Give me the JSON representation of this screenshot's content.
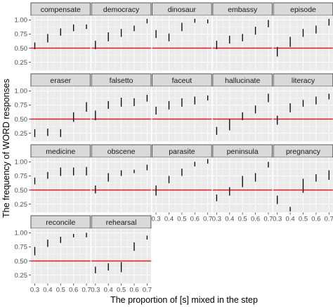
{
  "chart_data": {
    "type": "faceted-errorbar",
    "xlabel": "The proportion of [s] mixed in the step",
    "ylabel": "The frequency of WORD responses",
    "x_ticks": [
      0.3,
      0.4,
      0.5,
      0.6,
      0.7
    ],
    "y_ticks": [
      0.25,
      0.5,
      0.75,
      1.0
    ],
    "y_tick_labels": [
      "0.25",
      "0.50",
      "0.75",
      "1.00"
    ],
    "xlim": [
      0.27,
      0.73
    ],
    "ylim": [
      0.1,
      1.08
    ],
    "reference_line": 0.5,
    "grid": true,
    "colors": {
      "panel_bg": "#ebebeb",
      "grid_major": "#ffffff",
      "strip_bg": "#d9d9d9",
      "strip_border": "#333333",
      "reference_line": "#e31a1c",
      "errorbar": "#000000"
    },
    "panels": [
      {
        "title": "compensate",
        "x": [
          0.3,
          0.4,
          0.5,
          0.6,
          0.7
        ],
        "low": [
          0.48,
          0.6,
          0.72,
          0.8,
          0.84
        ],
        "high": [
          0.6,
          0.75,
          0.85,
          0.92,
          0.92
        ]
      },
      {
        "title": "democracy",
        "x": [
          0.3,
          0.4,
          0.5,
          0.6,
          0.7
        ],
        "low": [
          0.48,
          0.62,
          0.7,
          0.8,
          0.94
        ],
        "high": [
          0.63,
          0.78,
          0.84,
          0.9,
          1.02
        ]
      },
      {
        "title": "dinosaur",
        "x": [
          0.3,
          0.4,
          0.5,
          0.6,
          0.7
        ],
        "low": [
          0.68,
          0.62,
          0.8,
          0.95,
          0.94
        ],
        "high": [
          0.82,
          0.76,
          0.95,
          1.02,
          1.01
        ]
      },
      {
        "title": "embassy",
        "x": [
          0.3,
          0.4,
          0.5,
          0.6,
          0.7
        ],
        "low": [
          0.48,
          0.58,
          0.62,
          0.74,
          0.87
        ],
        "high": [
          0.63,
          0.72,
          0.75,
          0.88,
          1.0
        ]
      },
      {
        "title": "episode",
        "x": [
          0.3,
          0.4,
          0.5,
          0.6,
          0.7
        ],
        "low": [
          0.35,
          0.52,
          0.7,
          0.76,
          0.9
        ],
        "high": [
          0.52,
          0.7,
          0.84,
          0.9,
          1.02
        ]
      },
      {
        "title": "eraser",
        "x": [
          0.3,
          0.4,
          0.5,
          0.6,
          0.7
        ],
        "low": [
          0.18,
          0.2,
          0.18,
          0.45,
          0.63
        ],
        "high": [
          0.32,
          0.33,
          0.32,
          0.62,
          0.8
        ]
      },
      {
        "title": "falsetto",
        "x": [
          0.3,
          0.4,
          0.5,
          0.6,
          0.7
        ],
        "low": [
          0.48,
          0.68,
          0.72,
          0.73,
          0.81
        ],
        "high": [
          0.65,
          0.82,
          0.88,
          0.87,
          0.93
        ]
      },
      {
        "title": "faceut",
        "x": [
          0.3,
          0.4,
          0.5,
          0.6,
          0.7
        ],
        "low": [
          0.58,
          0.67,
          0.72,
          0.76,
          0.83
        ],
        "high": [
          0.72,
          0.82,
          0.87,
          0.9,
          0.92
        ]
      },
      {
        "title": "hallucinate",
        "x": [
          0.3,
          0.4,
          0.5,
          0.6,
          0.7
        ],
        "low": [
          0.22,
          0.3,
          0.48,
          0.6,
          0.8
        ],
        "high": [
          0.36,
          0.5,
          0.62,
          0.74,
          0.95
        ]
      },
      {
        "title": "literacy",
        "x": [
          0.3,
          0.4,
          0.5,
          0.6,
          0.7
        ],
        "low": [
          0.4,
          0.62,
          0.72,
          0.76,
          0.85
        ],
        "high": [
          0.56,
          0.78,
          0.84,
          0.9,
          0.95
        ]
      },
      {
        "title": "medicine",
        "x": [
          0.3,
          0.4,
          0.5,
          0.6,
          0.7
        ],
        "low": [
          0.6,
          0.7,
          0.75,
          0.76,
          0.76
        ],
        "high": [
          0.72,
          0.82,
          0.9,
          0.9,
          0.91
        ]
      },
      {
        "title": "obscene",
        "x": [
          0.3,
          0.4,
          0.5,
          0.6,
          0.7
        ],
        "low": [
          0.44,
          0.65,
          0.75,
          0.8,
          0.85
        ],
        "high": [
          0.58,
          0.8,
          0.85,
          0.86,
          0.95
        ]
      },
      {
        "title": "parasite",
        "x": [
          0.3,
          0.4,
          0.5,
          0.6,
          0.7
        ],
        "low": [
          0.4,
          0.62,
          0.75,
          0.92,
          0.97
        ],
        "high": [
          0.58,
          0.75,
          0.88,
          1.0,
          1.05
        ]
      },
      {
        "title": "peninsula",
        "x": [
          0.3,
          0.4,
          0.5,
          0.6,
          0.7
        ],
        "low": [
          0.3,
          0.4,
          0.55,
          0.65,
          0.9
        ],
        "high": [
          0.42,
          0.55,
          0.75,
          0.8,
          1.0
        ]
      },
      {
        "title": "pregnancy",
        "x": [
          0.3,
          0.4,
          0.5,
          0.6,
          0.7
        ],
        "low": [
          0.25,
          0.12,
          0.45,
          0.65,
          0.68
        ],
        "high": [
          0.4,
          0.2,
          0.7,
          0.78,
          0.85
        ]
      },
      {
        "title": "reconcile",
        "x": [
          0.3,
          0.4,
          0.5,
          0.6,
          0.7
        ],
        "low": [
          0.6,
          0.75,
          0.82,
          0.92,
          0.92
        ],
        "high": [
          0.75,
          0.88,
          0.93,
          0.98,
          1.0
        ]
      },
      {
        "title": "rehearsal",
        "x": [
          0.3,
          0.4,
          0.5,
          0.6,
          0.7
        ],
        "low": [
          0.28,
          0.33,
          0.3,
          0.68,
          0.88
        ],
        "high": [
          0.4,
          0.46,
          0.48,
          0.83,
          0.95
        ]
      }
    ]
  }
}
